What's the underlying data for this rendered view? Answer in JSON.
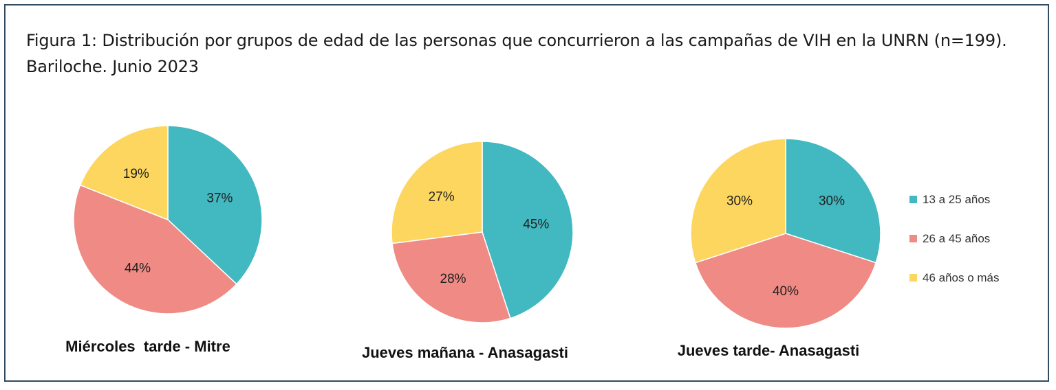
{
  "title": "Figura 1: Distribución por grupos de edad de las personas que concurrieron a las campañas de VIH en la UNRN (n=199). Bariloche. Junio 2023",
  "colors": {
    "13 a 25 años": "#42b8c1",
    "26 a 45 años": "#ef8a84",
    "46 años o más": "#fcd65f"
  },
  "chart_data": [
    {
      "type": "pie",
      "title": "Miércoles  tarde - Mitre",
      "categories": [
        "13 a 25 años",
        "26 a 45 años",
        "46 años o más"
      ],
      "values": [
        37,
        44,
        19
      ],
      "labels": [
        "37%",
        "44%",
        "19%"
      ]
    },
    {
      "type": "pie",
      "title": "Jueves mañana - Anasagasti",
      "categories": [
        "13 a 25 años",
        "26 a 45 años",
        "46 años o más"
      ],
      "values": [
        45,
        28,
        27
      ],
      "labels": [
        "45%",
        "28%",
        "27%"
      ]
    },
    {
      "type": "pie",
      "title": "Jueves tarde- Anasagasti",
      "categories": [
        "13 a 25 años",
        "26 a 45 años",
        "46 años o más"
      ],
      "values": [
        30,
        40,
        30
      ],
      "labels": [
        "30%",
        "40%",
        "30%"
      ]
    }
  ],
  "legend": {
    "placement": "right",
    "items": [
      "13 a 25 años",
      "26 a 45 años",
      "46 años o más"
    ]
  }
}
